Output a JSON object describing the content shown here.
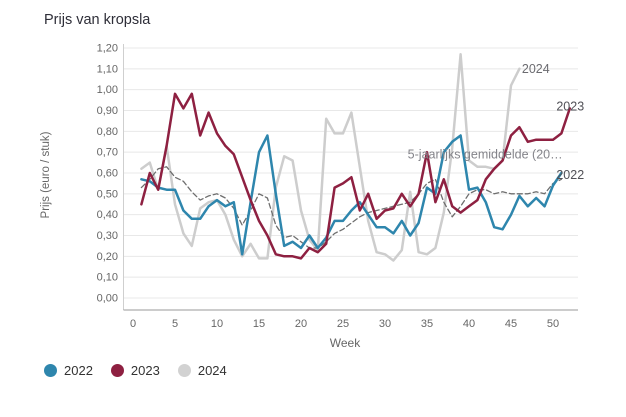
{
  "title": "Prijs van kropsla",
  "chart_data": {
    "type": "line",
    "title": "Prijs van kropsla",
    "xlabel": "Week",
    "ylabel": "Prijs (euro / stuk)",
    "xlim": [
      0,
      53
    ],
    "ylim": [
      0,
      1.2
    ],
    "x_ticks": [
      0,
      5,
      10,
      15,
      20,
      25,
      30,
      35,
      40,
      45,
      50
    ],
    "y_tick_labels": [
      "0,00",
      "0,10",
      "0,20",
      "0,30",
      "0,40",
      "0,50",
      "0,60",
      "0,70",
      "0,80",
      "0,90",
      "1,00",
      "1,10",
      "1,20"
    ],
    "grid": "horizontal",
    "legend_position": "bottom-left",
    "x_unit": "week number, series values start at week 1",
    "series": [
      {
        "name": "2024",
        "color": "#cdcdcd",
        "style": "solid",
        "values": [
          0.62,
          0.65,
          0.52,
          0.73,
          0.45,
          0.31,
          0.25,
          0.43,
          0.46,
          0.47,
          0.4,
          0.28,
          0.2,
          0.26,
          0.19,
          0.19,
          0.53,
          0.68,
          0.66,
          0.42,
          0.28,
          0.23,
          0.86,
          0.79,
          0.79,
          0.89,
          0.63,
          0.37,
          0.22,
          0.21,
          0.18,
          0.23,
          0.51,
          0.22,
          0.21,
          0.24,
          0.41,
          0.72,
          1.17,
          0.66,
          0.63,
          0.63,
          0.62,
          0.66,
          1.02,
          1.1
        ]
      },
      {
        "name": "5-jaarlijks gemiddelde (20…",
        "color": "#6e6e6e",
        "style": "dashed",
        "values": [
          0.53,
          0.57,
          0.62,
          0.63,
          0.58,
          0.56,
          0.51,
          0.47,
          0.49,
          0.5,
          0.48,
          0.43,
          0.35,
          0.42,
          0.5,
          0.48,
          0.35,
          0.29,
          0.3,
          0.27,
          0.24,
          0.24,
          0.27,
          0.31,
          0.33,
          0.36,
          0.39,
          0.41,
          0.42,
          0.43,
          0.44,
          0.45,
          0.46,
          0.5,
          0.55,
          0.57,
          0.46,
          0.39,
          0.44,
          0.5,
          0.52,
          0.52,
          0.5,
          0.51,
          0.5,
          0.5,
          0.5,
          0.51,
          0.5,
          0.55,
          0.57
        ]
      },
      {
        "name": "2022",
        "color": "#2e86ad",
        "style": "solid",
        "values": [
          0.57,
          0.56,
          0.53,
          0.52,
          0.52,
          0.42,
          0.38,
          0.38,
          0.44,
          0.47,
          0.44,
          0.46,
          0.21,
          0.46,
          0.7,
          0.78,
          0.5,
          0.25,
          0.27,
          0.24,
          0.3,
          0.24,
          0.29,
          0.37,
          0.37,
          0.42,
          0.46,
          0.4,
          0.34,
          0.34,
          0.31,
          0.37,
          0.3,
          0.36,
          0.53,
          0.5,
          0.7,
          0.75,
          0.78,
          0.52,
          0.53,
          0.46,
          0.34,
          0.33,
          0.4,
          0.49,
          0.44,
          0.48,
          0.44,
          0.54,
          0.6
        ]
      },
      {
        "name": "2023",
        "color": "#8e2041",
        "style": "solid",
        "values": [
          0.45,
          0.6,
          0.52,
          0.73,
          0.98,
          0.91,
          0.98,
          0.78,
          0.89,
          0.79,
          0.73,
          0.69,
          0.58,
          0.47,
          0.37,
          0.3,
          0.21,
          0.2,
          0.2,
          0.19,
          0.24,
          0.22,
          0.26,
          0.53,
          0.55,
          0.58,
          0.42,
          0.5,
          0.38,
          0.42,
          0.43,
          0.5,
          0.44,
          0.5,
          0.7,
          0.46,
          0.57,
          0.44,
          0.41,
          0.44,
          0.47,
          0.57,
          0.62,
          0.66,
          0.78,
          0.82,
          0.75,
          0.76,
          0.76,
          0.76,
          0.79,
          0.91
        ]
      }
    ],
    "series_end_labels": [
      {
        "text": "2024",
        "week": 46.3,
        "value": 1.1,
        "color": "#6b6b70"
      },
      {
        "text": "2023",
        "week": 50.4,
        "value": 0.92,
        "color": "#515157"
      },
      {
        "text": "5-jaarlijks gemiddelde (20…",
        "week": 32.7,
        "value": 0.69,
        "color": "#84848a"
      },
      {
        "text": "2022",
        "week": 50.4,
        "value": 0.59,
        "color": "#515157"
      }
    ]
  },
  "legend": {
    "items": [
      {
        "label": "2022",
        "color": "#2e86ad"
      },
      {
        "label": "2023",
        "color": "#8e2041"
      },
      {
        "label": "2024",
        "color": "#d2d2d2"
      }
    ]
  },
  "style_colors": {
    "grid_line": "#e8e8e8",
    "x_axis_line": "#999999",
    "y_axis_line": "#cfcfcf",
    "axis_label": "#666666",
    "title": "#2e2e38",
    "legend_text": "#333333"
  }
}
